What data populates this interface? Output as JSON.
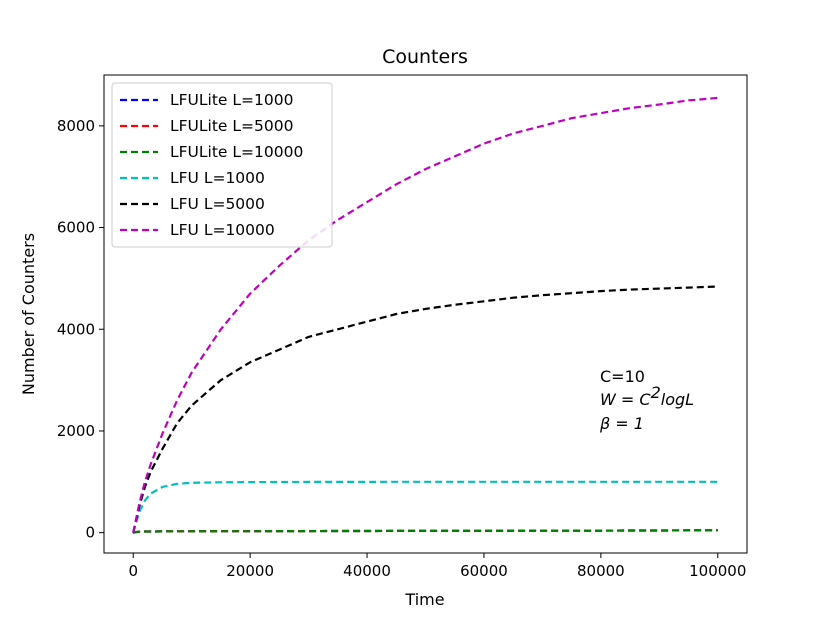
{
  "chart_data": {
    "type": "line",
    "title": "Counters",
    "xlabel": "Time",
    "ylabel": "Number of Counters",
    "xlim": [
      -5000,
      105000
    ],
    "ylim": [
      -400,
      9000
    ],
    "xticks": [
      0,
      20000,
      40000,
      60000,
      80000,
      100000
    ],
    "xtick_labels": [
      "0",
      "20000",
      "40000",
      "60000",
      "80000",
      "100000"
    ],
    "yticks": [
      0,
      2000,
      4000,
      6000,
      8000
    ],
    "ytick_labels": [
      "0",
      "2000",
      "4000",
      "6000",
      "8000"
    ],
    "grid": false,
    "legend_position": "top-left",
    "line_style": "dashed",
    "x": [
      0,
      1000,
      2000,
      3000,
      5000,
      7500,
      10000,
      15000,
      20000,
      25000,
      30000,
      35000,
      40000,
      45000,
      50000,
      55000,
      60000,
      65000,
      70000,
      75000,
      80000,
      85000,
      90000,
      95000,
      100000
    ],
    "series": [
      {
        "name": "LFULite L=1000",
        "color": "#0000ff",
        "values": [
          0,
          20,
          22,
          23,
          25,
          26,
          27,
          28,
          29,
          30,
          31,
          32,
          33,
          34,
          35,
          36,
          37,
          38,
          39,
          40,
          41,
          42,
          43,
          44,
          45
        ]
      },
      {
        "name": "LFULite L=5000",
        "color": "#ff0000",
        "values": [
          0,
          20,
          22,
          23,
          25,
          26,
          27,
          28,
          29,
          30,
          31,
          32,
          33,
          34,
          35,
          36,
          37,
          38,
          39,
          40,
          41,
          42,
          43,
          44,
          45
        ]
      },
      {
        "name": "LFULite L=10000",
        "color": "#008000",
        "values": [
          0,
          20,
          22,
          23,
          25,
          26,
          27,
          28,
          29,
          30,
          31,
          32,
          33,
          34,
          35,
          36,
          37,
          38,
          39,
          40,
          41,
          42,
          43,
          44,
          45
        ]
      },
      {
        "name": "LFU L=1000",
        "color": "#00bfbf",
        "values": [
          0,
          400,
          630,
          770,
          900,
          960,
          980,
          990,
          995,
          997,
          998,
          999,
          999,
          1000,
          1000,
          1000,
          1000,
          1000,
          1000,
          1000,
          1000,
          1000,
          1000,
          1000,
          1000
        ]
      },
      {
        "name": "LFU L=5000",
        "color": "#000000",
        "values": [
          0,
          500,
          900,
          1200,
          1650,
          2150,
          2500,
          3000,
          3350,
          3600,
          3850,
          4000,
          4150,
          4300,
          4400,
          4480,
          4550,
          4620,
          4670,
          4710,
          4750,
          4780,
          4800,
          4820,
          4840
        ]
      },
      {
        "name": "LFU L=10000",
        "color": "#bf00bf",
        "values": [
          0,
          550,
          1000,
          1350,
          1950,
          2600,
          3150,
          4000,
          4700,
          5250,
          5750,
          6150,
          6500,
          6850,
          7150,
          7400,
          7650,
          7850,
          8000,
          8150,
          8250,
          8350,
          8420,
          8500,
          8550
        ]
      }
    ],
    "annotations": {
      "line1": "C=10",
      "line2_math": "W = C",
      "line2_sup": "2",
      "line2_rest": "logL",
      "line3_math": "β = 1"
    }
  }
}
